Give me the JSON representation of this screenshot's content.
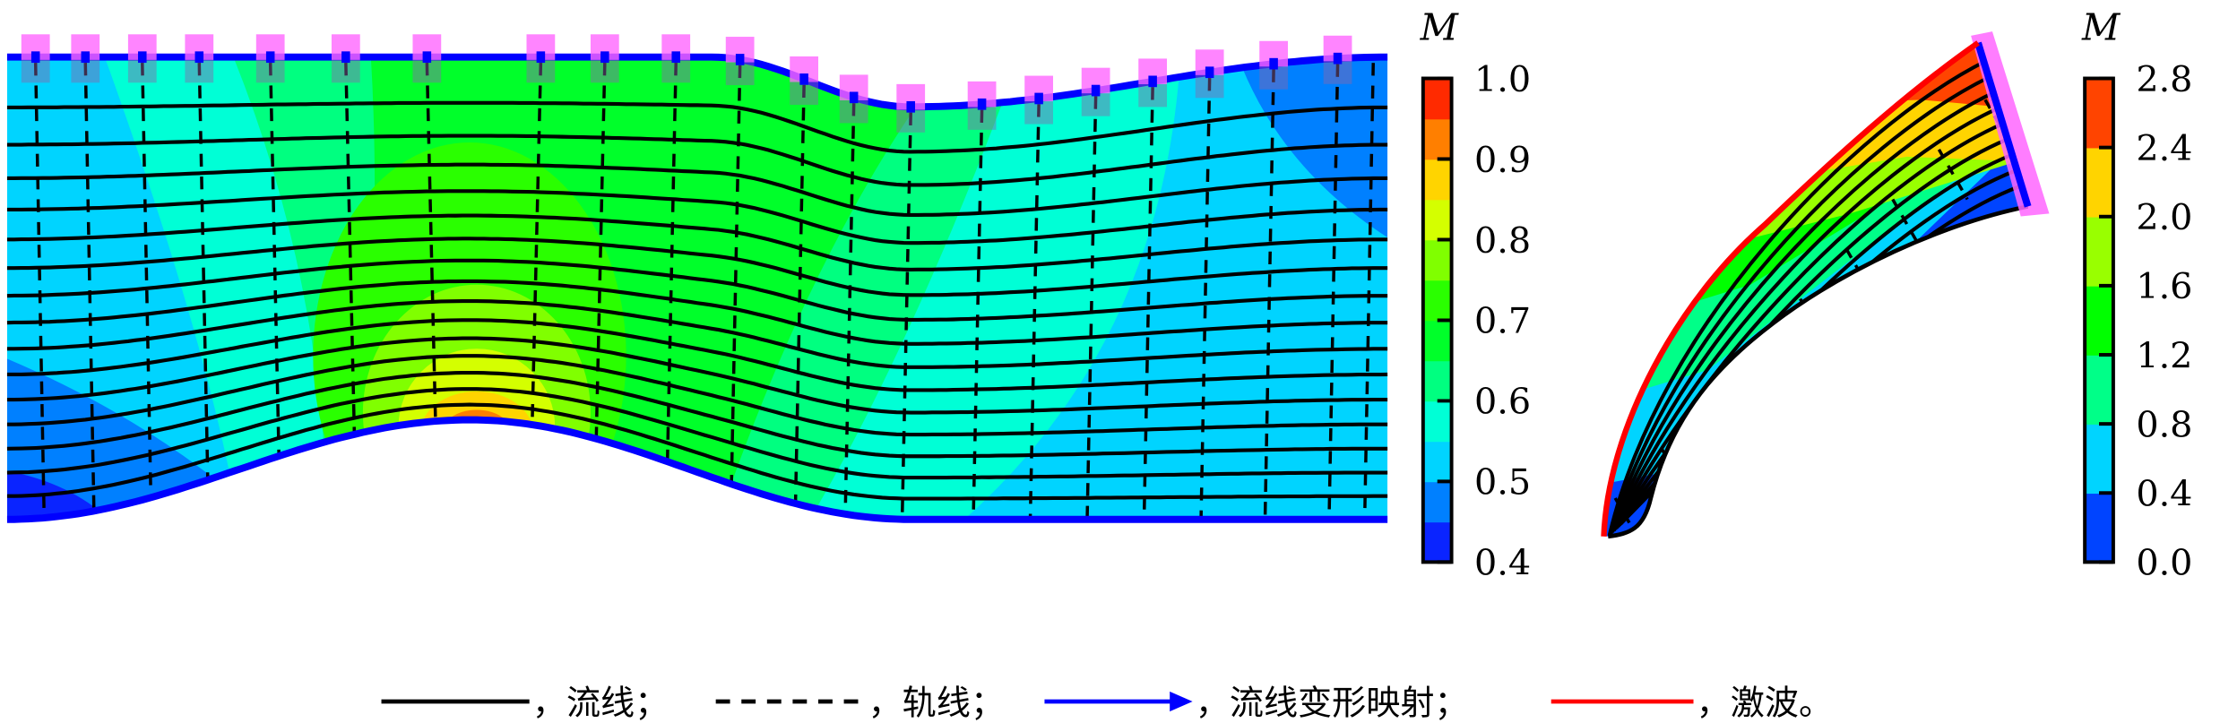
{
  "chart_data": [
    {
      "type": "contour",
      "panel": "left",
      "colorbar": {
        "label": "M",
        "range": [
          0.4,
          1.0
        ],
        "ticks": [
          "0.4",
          "0.5",
          "0.6",
          "0.7",
          "0.8",
          "0.9",
          "1.0"
        ],
        "levels": [
          0.4,
          0.45,
          0.5,
          0.55,
          0.6,
          0.65,
          0.7,
          0.75,
          0.8,
          0.85,
          0.9,
          0.95,
          1.0
        ],
        "colors": [
          "#0a24ff",
          "#0080ff",
          "#00d4ff",
          "#00ffd6",
          "#00ff80",
          "#00ff2a",
          "#2aff00",
          "#80ff00",
          "#d4ff00",
          "#ffd400",
          "#ff7f00",
          "#ff2a00"
        ]
      }
    },
    {
      "type": "contour",
      "panel": "right",
      "colorbar": {
        "label": "M",
        "range": [
          0.0,
          2.8
        ],
        "ticks": [
          "0.0",
          "0.4",
          "0.8",
          "1.2",
          "1.6",
          "2.0",
          "2.4",
          "2.8"
        ],
        "levels": [
          0.0,
          0.4,
          0.8,
          1.2,
          1.6,
          2.0,
          2.4,
          2.8
        ],
        "colors": [
          "#0044ff",
          "#00d4ff",
          "#00ff88",
          "#00ff00",
          "#99ff00",
          "#ffd400",
          "#ff4400"
        ]
      }
    }
  ],
  "legend": [
    {
      "style": "solid",
      "color": "#000000",
      "label": "，流线；"
    },
    {
      "style": "dashed",
      "color": "#000000",
      "label": "，轨线；"
    },
    {
      "style": "arrow",
      "color": "#0000ff",
      "label": "，流线变形映射；"
    },
    {
      "style": "solid",
      "color": "#ff0000",
      "label": "，激波。"
    }
  ]
}
